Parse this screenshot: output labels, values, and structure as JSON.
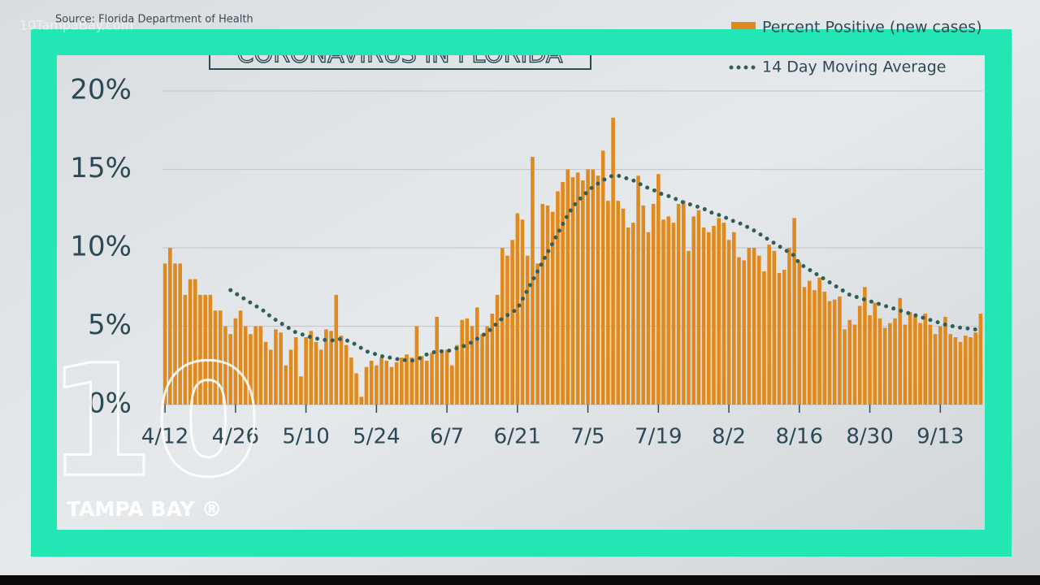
{
  "chart_data": {
    "type": "bar",
    "title": "CORONAVIRUS IN FLORIDA",
    "source": "Source: Florida Department of Health",
    "categories": [
      "4/12",
      null,
      null,
      null,
      null,
      null,
      null,
      null,
      null,
      null,
      null,
      null,
      null,
      null,
      "4/26",
      null,
      null,
      null,
      null,
      null,
      null,
      null,
      null,
      null,
      null,
      null,
      null,
      null,
      "5/10",
      null,
      null,
      null,
      null,
      null,
      null,
      null,
      null,
      null,
      null,
      null,
      null,
      null,
      "5/24",
      null,
      null,
      null,
      null,
      null,
      null,
      null,
      null,
      null,
      null,
      null,
      null,
      null,
      "6/7",
      null,
      null,
      null,
      null,
      null,
      null,
      null,
      null,
      null,
      null,
      null,
      null,
      null,
      "6/21",
      null,
      null,
      null,
      null,
      null,
      null,
      null,
      null,
      null,
      null,
      null,
      null,
      null,
      "7/5",
      null,
      null,
      null,
      null,
      null,
      null,
      null,
      null,
      null,
      null,
      null,
      null,
      null,
      "7/19",
      null,
      null,
      null,
      null,
      null,
      null,
      null,
      null,
      null,
      null,
      null,
      null,
      null,
      "8/2",
      null,
      null,
      null,
      null,
      null,
      null,
      null,
      null,
      null,
      null,
      null,
      null,
      null,
      "8/16",
      null,
      null,
      null,
      null,
      null,
      null,
      null,
      null,
      null,
      null,
      null,
      null,
      null,
      "8/30",
      null,
      null,
      null,
      null,
      null,
      null,
      null,
      null,
      null,
      null,
      null,
      null,
      null,
      "9/13",
      null,
      null,
      null,
      null,
      null,
      null,
      null,
      null
    ],
    "series": [
      {
        "name": "Percent Positive (new cases)",
        "color": "#e08a1e",
        "values": [
          9.0,
          10.0,
          9.0,
          9.0,
          7.0,
          8.0,
          8.0,
          7.0,
          7.0,
          7.0,
          6.0,
          6.0,
          5.0,
          4.5,
          5.5,
          6.0,
          5.0,
          4.5,
          5.0,
          5.0,
          4.0,
          3.5,
          4.8,
          4.6,
          2.5,
          3.5,
          4.3,
          1.8,
          4.3,
          4.7,
          4.0,
          3.5,
          4.8,
          4.7,
          7.0,
          4.4,
          3.8,
          3.0,
          2.0,
          0.5,
          2.4,
          2.8,
          2.5,
          3.0,
          2.8,
          2.4,
          2.7,
          3.0,
          3.2,
          3.0,
          5.0,
          3.1,
          2.8,
          3.3,
          5.6,
          3.5,
          3.5,
          2.5,
          3.8,
          5.4,
          5.5,
          5.0,
          6.2,
          4.5,
          5.0,
          5.8,
          7.0,
          10.0,
          9.5,
          10.5,
          12.2,
          11.8,
          9.5,
          15.8,
          9.0,
          12.8,
          12.7,
          12.3,
          13.6,
          14.2,
          15.0,
          14.5,
          14.8,
          14.3,
          15.0,
          15.0,
          14.6,
          16.2,
          13.0,
          18.3,
          13.0,
          12.5,
          11.3,
          11.6,
          14.6,
          12.7,
          11.0,
          12.8,
          14.7,
          11.8,
          12.0,
          11.6,
          12.8,
          13.0,
          9.8,
          12.0,
          12.4,
          11.3,
          11.0,
          11.4,
          11.9,
          11.6,
          10.5,
          11.0,
          9.4,
          9.2,
          10.0,
          10.0,
          9.5,
          8.5,
          10.2,
          9.8,
          8.4,
          8.6,
          10.0,
          11.9,
          9.1,
          7.5,
          7.9,
          7.3,
          8.1,
          7.2,
          6.6,
          6.7,
          6.9,
          4.8,
          5.4,
          5.1,
          6.3,
          7.5,
          5.7,
          6.5,
          5.5,
          4.9,
          5.2,
          5.5,
          6.8,
          5.1,
          5.9,
          5.6,
          5.2,
          5.8,
          5.1,
          4.5,
          5.0,
          5.6,
          4.5,
          4.3,
          4.0,
          4.4,
          4.3,
          4.6,
          5.8
        ]
      },
      {
        "name": "14 Day Moving Average",
        "color": "#2f5f5a",
        "type": "line",
        "values": [
          null,
          null,
          null,
          null,
          null,
          null,
          null,
          null,
          null,
          null,
          null,
          null,
          null,
          7.3,
          7.1,
          6.9,
          6.7,
          6.5,
          6.3,
          6.1,
          5.9,
          5.6,
          5.4,
          5.2,
          5.0,
          4.8,
          4.6,
          4.5,
          4.4,
          4.3,
          4.2,
          4.2,
          4.1,
          4.1,
          4.1,
          4.2,
          4.1,
          4.0,
          3.8,
          3.6,
          3.4,
          3.3,
          3.2,
          3.1,
          3.0,
          3.0,
          2.9,
          2.9,
          2.8,
          2.8,
          2.9,
          3.0,
          3.2,
          3.3,
          3.4,
          3.4,
          3.4,
          3.5,
          3.6,
          3.7,
          3.8,
          4.0,
          4.2,
          4.4,
          4.6,
          4.9,
          5.2,
          5.5,
          5.7,
          5.9,
          6.1,
          6.7,
          7.3,
          7.9,
          8.5,
          9.1,
          9.7,
          10.3,
          10.9,
          11.5,
          12.1,
          12.6,
          13.0,
          13.3,
          13.6,
          13.9,
          14.1,
          14.3,
          14.5,
          14.6,
          14.6,
          14.5,
          14.4,
          14.3,
          14.1,
          14.0,
          13.8,
          13.7,
          13.5,
          13.4,
          13.3,
          13.2,
          13.0,
          12.9,
          12.8,
          12.7,
          12.6,
          12.5,
          12.3,
          12.2,
          12.1,
          12.0,
          11.8,
          11.7,
          11.6,
          11.4,
          11.3,
          11.1,
          10.9,
          10.7,
          10.5,
          10.3,
          10.1,
          9.9,
          9.7,
          9.5,
          9.0,
          8.8,
          8.6,
          8.4,
          8.2,
          8.0,
          7.8,
          7.6,
          7.4,
          7.2,
          7.0,
          6.9,
          6.8,
          6.7,
          6.6,
          6.5,
          6.4,
          6.3,
          6.2,
          6.1,
          6.0,
          5.9,
          5.8,
          5.7,
          5.6,
          5.5,
          5.4,
          5.3,
          5.2,
          5.1,
          5.0,
          5.0,
          4.9,
          4.9,
          4.8,
          4.8,
          4.8
        ]
      }
    ],
    "ylim": [
      0,
      20
    ],
    "yticks": [
      {
        "value": 0,
        "label": "0%"
      },
      {
        "value": 5,
        "label": "5%"
      },
      {
        "value": 10,
        "label": "10%"
      },
      {
        "value": 15,
        "label": "15%"
      },
      {
        "value": 20,
        "label": "20%"
      }
    ],
    "grid": true
  },
  "overlay": {
    "watermark": "10TampaBay.com",
    "logo_number": "10",
    "logo_text": "TAMPA BAY ®"
  }
}
